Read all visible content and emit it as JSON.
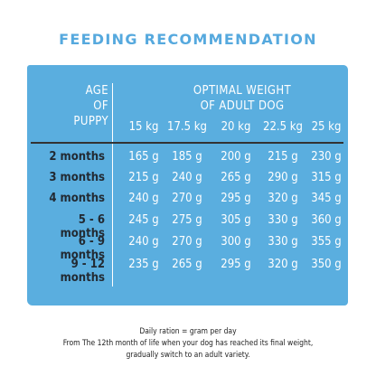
{
  "title": "FEEDING RECOMMENDATION",
  "colors": {
    "accent": "#56a9de",
    "panel": "#5aaedf",
    "row_label": "#222a33"
  },
  "table": {
    "age_header": [
      "AGE",
      "OF",
      "PUPPY"
    ],
    "weight_header": [
      "OPTIMAL WEIGHT",
      "OF ADULT DOG"
    ],
    "weights": [
      "15 kg",
      "17.5 kg",
      "20 kg",
      "22.5 kg",
      "25 kg"
    ],
    "rows": [
      {
        "age": "2 months",
        "values": [
          "165 g",
          "185 g",
          "200 g",
          "215 g",
          "230 g"
        ]
      },
      {
        "age": "3 months",
        "values": [
          "215 g",
          "240 g",
          "265 g",
          "290 g",
          "315 g"
        ]
      },
      {
        "age": "4 months",
        "values": [
          "240 g",
          "270 g",
          "295 g",
          "320 g",
          "345 g"
        ]
      },
      {
        "age": "5 - 6 months",
        "values": [
          "245 g",
          "275 g",
          "305 g",
          "330 g",
          "360 g"
        ]
      },
      {
        "age": "6 - 9 months",
        "values": [
          "240 g",
          "270 g",
          "300 g",
          "330 g",
          "355 g"
        ]
      },
      {
        "age": "9 - 12 months",
        "values": [
          "235 g",
          "265 g",
          "295 g",
          "320 g",
          "350 g"
        ]
      }
    ]
  },
  "notes": [
    "Daily ration = gram per day",
    "From The 12th month of life when your dog has reached its final weight,",
    "gradually switch to an adult variety."
  ]
}
